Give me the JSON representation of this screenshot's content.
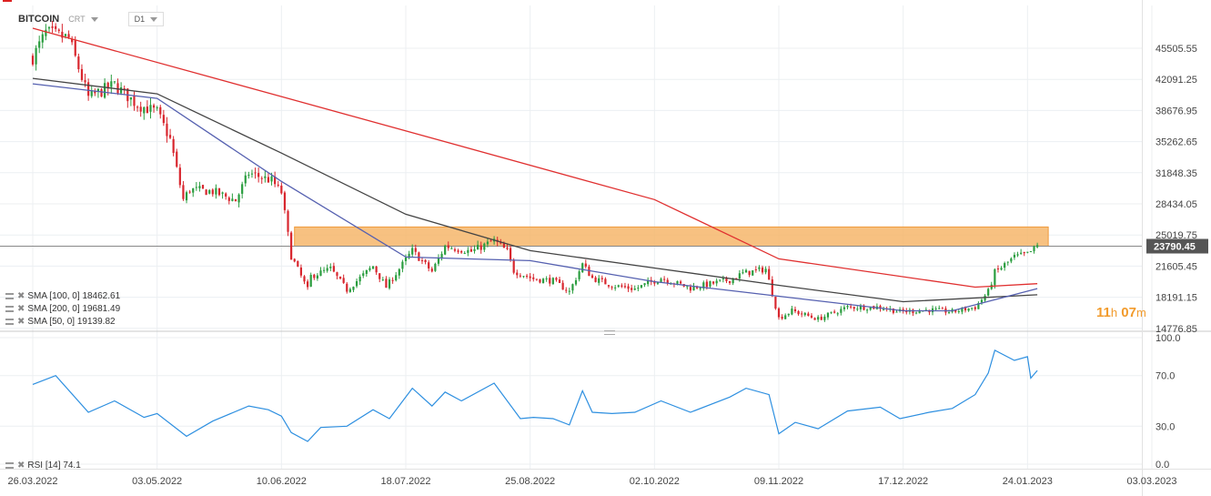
{
  "header": {
    "symbol": "BITCOIN",
    "instrument_type": "CRT",
    "timeframe": "D1"
  },
  "legends": [
    {
      "label": "SMA [100, 0]",
      "value": "18462.61",
      "color": "#444444"
    },
    {
      "label": "SMA [200, 0]",
      "value": "19681.49",
      "color": "#e03030"
    },
    {
      "label": "SMA [50, 0]",
      "value": "19139.82",
      "color": "#5560b0"
    }
  ],
  "rsi_legend": {
    "label": "RSI [14]",
    "value": "74.1"
  },
  "countdown": {
    "hours": "11",
    "h_unit": "h",
    "minutes": "07",
    "m_unit": "m"
  },
  "colors": {
    "up": "#2a9d3f",
    "down": "#d8262e",
    "zone": "#f6b66b",
    "rsi": "#2d8fe0",
    "sma100": "#444444",
    "sma200": "#e03030",
    "sma50": "#5560b0"
  },
  "chart_data": [
    {
      "type": "candlestick",
      "title": "BITCOIN D1",
      "price_ticks": [
        "45505.55",
        "42091.25",
        "38676.95",
        "35262.65",
        "31848.35",
        "28434.05",
        "25019.75",
        "21605.45",
        "18191.15",
        "14776.85"
      ],
      "x_ticks": [
        "26.03.2022",
        "03.05.2022",
        "10.06.2022",
        "18.07.2022",
        "25.08.2022",
        "02.10.2022",
        "09.11.2022",
        "17.12.2022",
        "24.01.2023",
        "03.03.2023"
      ],
      "last_price": "23790.45",
      "resistance_zone": {
        "low": 23790,
        "high": 25900,
        "from": "14.06.2022",
        "to": "27.01.2023"
      },
      "close_path": [
        [
          "26.03.2022",
          44500
        ],
        [
          "30.03.2022",
          47200
        ],
        [
          "06.04.2022",
          46600
        ],
        [
          "12.04.2022",
          40100
        ],
        [
          "20.04.2022",
          41500
        ],
        [
          "27.04.2022",
          39300
        ],
        [
          "03.05.2022",
          38500
        ],
        [
          "07.05.2022",
          35500
        ],
        [
          "11.05.2022",
          28900
        ],
        [
          "13.05.2022",
          30000
        ],
        [
          "20.05.2022",
          29800
        ],
        [
          "27.05.2022",
          28800
        ],
        [
          "31.05.2022",
          31800
        ],
        [
          "07.06.2022",
          31000
        ],
        [
          "10.06.2022",
          29700
        ],
        [
          "13.06.2022",
          22700
        ],
        [
          "18.06.2022",
          19000
        ],
        [
          "19.06.2022",
          20500
        ],
        [
          "25.06.2022",
          21300
        ],
        [
          "30.06.2022",
          19000
        ],
        [
          "08.07.2022",
          21600
        ],
        [
          "12.07.2022",
          19300
        ],
        [
          "15.07.2022",
          20800
        ],
        [
          "20.07.2022",
          23300
        ],
        [
          "26.07.2022",
          21000
        ],
        [
          "30.07.2022",
          23800
        ],
        [
          "07.08.2022",
          23200
        ],
        [
          "14.08.2022",
          24400
        ],
        [
          "18.08.2022",
          23200
        ],
        [
          "20.08.2022",
          21100
        ],
        [
          "26.08.2022",
          20200
        ],
        [
          "01.09.2022",
          20000
        ],
        [
          "06.09.2022",
          18800
        ],
        [
          "10.09.2022",
          21800
        ],
        [
          "13.09.2022",
          20300
        ],
        [
          "19.09.2022",
          19500
        ],
        [
          "26.09.2022",
          19100
        ],
        [
          "04.10.2022",
          20300
        ],
        [
          "13.10.2022",
          19200
        ],
        [
          "25.10.2022",
          20100
        ],
        [
          "29.10.2022",
          20800
        ],
        [
          "05.11.2022",
          21300
        ],
        [
          "09.11.2022",
          15900
        ],
        [
          "13.11.2022",
          16700
        ],
        [
          "21.11.2022",
          15800
        ],
        [
          "30.11.2022",
          17100
        ],
        [
          "10.12.2022",
          17100
        ],
        [
          "16.12.2022",
          16600
        ],
        [
          "25.12.2022",
          16800
        ],
        [
          "01.01.2023",
          16600
        ],
        [
          "08.01.2023",
          17100
        ],
        [
          "12.01.2023",
          18800
        ],
        [
          "14.01.2023",
          20900
        ],
        [
          "20.01.2023",
          22600
        ],
        [
          "24.01.2023",
          22900
        ],
        [
          "27.01.2023",
          23790
        ]
      ],
      "sma_200": [
        [
          "26.03.2022",
          47700
        ],
        [
          "10.06.2022",
          40200
        ],
        [
          "02.10.2022",
          28900
        ],
        [
          "09.11.2022",
          22400
        ],
        [
          "08.01.2023",
          19300
        ],
        [
          "27.01.2023",
          19681
        ]
      ],
      "sma_100": [
        [
          "26.03.2022",
          42200
        ],
        [
          "03.05.2022",
          40500
        ],
        [
          "10.06.2022",
          34000
        ],
        [
          "18.07.2022",
          27300
        ],
        [
          "25.08.2022",
          23300
        ],
        [
          "02.10.2022",
          21400
        ],
        [
          "09.11.2022",
          19500
        ],
        [
          "17.12.2022",
          17700
        ],
        [
          "27.01.2023",
          18462
        ]
      ],
      "sma_50": [
        [
          "26.03.2022",
          41600
        ],
        [
          "03.05.2022",
          40000
        ],
        [
          "10.06.2022",
          30900
        ],
        [
          "18.07.2022",
          22600
        ],
        [
          "25.08.2022",
          22200
        ],
        [
          "02.10.2022",
          19900
        ],
        [
          "09.11.2022",
          18300
        ],
        [
          "17.12.2022",
          16700
        ],
        [
          "01.01.2023",
          16700
        ],
        [
          "27.01.2023",
          19139
        ]
      ]
    },
    {
      "type": "line",
      "title": "RSI [14]",
      "y_ticks": [
        "100.0",
        "70.0",
        "30.0",
        "0.0"
      ],
      "ylim": [
        0,
        100
      ],
      "series": [
        {
          "name": "RSI [14]",
          "points": [
            [
              "26.03.2022",
              63
            ],
            [
              "02.04.2022",
              70
            ],
            [
              "12.04.2022",
              41
            ],
            [
              "20.04.2022",
              50
            ],
            [
              "29.04.2022",
              37
            ],
            [
              "03.05.2022",
              40
            ],
            [
              "12.05.2022",
              22
            ],
            [
              "20.05.2022",
              34
            ],
            [
              "31.05.2022",
              46
            ],
            [
              "06.06.2022",
              43
            ],
            [
              "10.06.2022",
              38
            ],
            [
              "13.06.2022",
              25
            ],
            [
              "18.06.2022",
              18
            ],
            [
              "22.06.2022",
              29
            ],
            [
              "30.06.2022",
              30
            ],
            [
              "08.07.2022",
              43
            ],
            [
              "13.07.2022",
              36
            ],
            [
              "20.07.2022",
              60
            ],
            [
              "26.07.2022",
              46
            ],
            [
              "30.07.2022",
              57
            ],
            [
              "04.08.2022",
              50
            ],
            [
              "14.08.2022",
              64
            ],
            [
              "22.08.2022",
              36
            ],
            [
              "26.08.2022",
              37
            ],
            [
              "01.09.2022",
              36
            ],
            [
              "06.09.2022",
              31
            ],
            [
              "10.09.2022",
              58
            ],
            [
              "13.09.2022",
              41
            ],
            [
              "19.09.2022",
              40
            ],
            [
              "26.09.2022",
              41
            ],
            [
              "04.10.2022",
              50
            ],
            [
              "13.10.2022",
              41
            ],
            [
              "25.10.2022",
              53
            ],
            [
              "30.10.2022",
              60
            ],
            [
              "06.11.2022",
              55
            ],
            [
              "09.11.2022",
              24
            ],
            [
              "14.11.2022",
              33
            ],
            [
              "21.11.2022",
              28
            ],
            [
              "30.11.2022",
              42
            ],
            [
              "10.12.2022",
              45
            ],
            [
              "16.12.2022",
              36
            ],
            [
              "25.12.2022",
              41
            ],
            [
              "01.01.2023",
              44
            ],
            [
              "08.01.2023",
              55
            ],
            [
              "12.01.2023",
              72
            ],
            [
              "14.01.2023",
              90
            ],
            [
              "20.01.2023",
              82
            ],
            [
              "24.01.2023",
              85
            ],
            [
              "25.01.2023",
              68
            ],
            [
              "27.01.2023",
              74
            ]
          ]
        }
      ]
    }
  ]
}
